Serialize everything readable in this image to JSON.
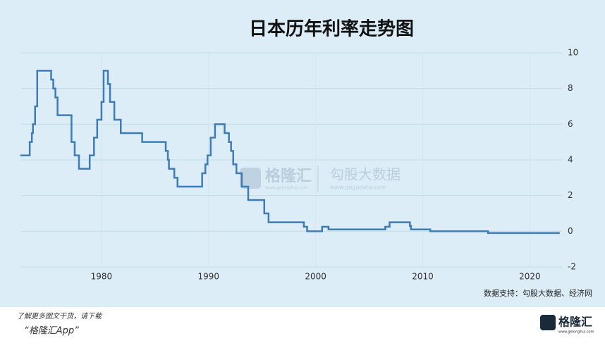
{
  "chart_data": {
    "type": "line",
    "step": true,
    "title": "日本历年利率走势图",
    "color": "#3f7cb6",
    "x": [
      1972.5,
      1973.3,
      1973.5,
      1973.6,
      1973.8,
      1974.0,
      1975.3,
      1975.5,
      1975.7,
      1975.9,
      1977.2,
      1977.5,
      1977.9,
      1978.9,
      1979.3,
      1979.6,
      1980.0,
      1980.2,
      1980.6,
      1980.8,
      1981.2,
      1981.8,
      1983.8,
      1986.0,
      1986.2,
      1986.3,
      1986.8,
      1987.1,
      1989.4,
      1989.7,
      1989.9,
      1990.2,
      1990.6,
      1991.5,
      1991.9,
      1992.1,
      1992.3,
      1992.6,
      1993.1,
      1993.7,
      1995.2,
      1995.6,
      1998.9,
      1999.2,
      2000.6,
      2001.2,
      2006.5,
      2006.9,
      2008.8,
      2008.9,
      2010.7,
      2016.1,
      2022.7
    ],
    "values": [
      4.25,
      5.0,
      5.5,
      6.0,
      7.0,
      9.0,
      8.5,
      8.0,
      7.5,
      6.5,
      5.0,
      4.25,
      3.5,
      4.25,
      5.25,
      6.25,
      7.25,
      9.0,
      8.25,
      7.25,
      6.25,
      5.5,
      5.0,
      4.5,
      4.0,
      3.5,
      3.0,
      2.5,
      3.25,
      3.75,
      4.25,
      5.25,
      6.0,
      5.5,
      5.0,
      4.5,
      3.75,
      3.25,
      2.5,
      1.75,
      1.0,
      0.5,
      0.25,
      0.0,
      0.25,
      0.1,
      0.25,
      0.5,
      0.3,
      0.1,
      0.0,
      -0.1,
      -0.1
    ],
    "xlim": [
      1972.5,
      2023
    ],
    "xticks": [
      1980,
      1990,
      2000,
      2010,
      2020
    ],
    "ylim": [
      -2,
      10
    ],
    "yticks": [
      -2,
      0,
      2,
      4,
      6,
      8,
      10
    ],
    "grid": true,
    "source": "数据支持：勾股大数据、经济网"
  },
  "watermark": {
    "brand": "格隆汇",
    "brand_url": "www.gelonghui.com",
    "partner": "勾股大数据",
    "partner_url": "www.gogudata.com"
  },
  "footer": {
    "line1": "了解更多图文干货，请下载",
    "line2": "“格隆汇App”",
    "logo": "格隆汇",
    "logo_url": "www.gelonghui.com"
  }
}
